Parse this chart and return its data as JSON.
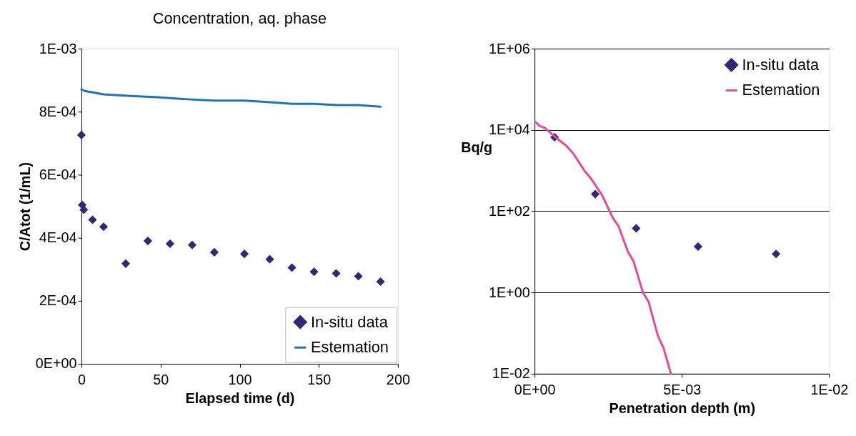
{
  "chart_data": [
    {
      "type": "scatter",
      "title": "Concentration, aq. phase",
      "xlabel": "Elapsed time (d)",
      "ylabel": "C/Atot (1/mL)",
      "xlim": [
        0,
        200
      ],
      "xticks": [
        0,
        50,
        100,
        150,
        200
      ],
      "ylim": [
        0,
        0.001
      ],
      "yticks": [
        {
          "value": 0,
          "label": "0E+00"
        },
        {
          "value": 0.0002,
          "label": "2E-04"
        },
        {
          "value": 0.0004,
          "label": "4E-04"
        },
        {
          "value": 0.0006,
          "label": "6E-04"
        },
        {
          "value": 0.0008,
          "label": "8E-04"
        },
        {
          "value": 0.001,
          "label": "1E-03"
        }
      ],
      "grid": false,
      "legend": "bottom right",
      "series": [
        {
          "name": "In-situ data",
          "type": "scatter",
          "marker": "diamond",
          "color": "#2e2878",
          "x": [
            0,
            0.5,
            1.5,
            7,
            14,
            28,
            42,
            56,
            70,
            84,
            103,
            119,
            133,
            147,
            161,
            175,
            189
          ],
          "values": [
            0.000726,
            0.000504,
            0.000489,
            0.000457,
            0.000435,
            0.000318,
            0.00039,
            0.000381,
            0.000377,
            0.000354,
            0.000349,
            0.000332,
            0.000305,
            0.000292,
            0.000287,
            0.000278,
            0.000261
          ]
        },
        {
          "name": "Estemation",
          "type": "line",
          "color": "#1f72bd",
          "x": [
            0,
            2,
            14,
            31,
            48,
            65,
            84,
            103,
            116,
            133,
            147,
            161,
            175,
            189
          ],
          "values": [
            0.00087,
            0.000866,
            0.000855,
            0.00085,
            0.000846,
            0.00084,
            0.000835,
            0.000835,
            0.000831,
            0.000825,
            0.000825,
            0.000821,
            0.000821,
            0.000816
          ]
        }
      ]
    },
    {
      "type": "scatter",
      "xlabel": "Penetration depth (m)",
      "ylabel": "Bq/g",
      "log": true,
      "xlim": [
        0,
        0.01
      ],
      "xticks": [
        {
          "value": 0,
          "label": "0E+00"
        },
        {
          "value": 0.005,
          "label": "5E-03"
        },
        {
          "value": 0.01,
          "label": "1E-02"
        }
      ],
      "ylim": [
        0.01,
        1000000
      ],
      "yticks": [
        {
          "value": 0.01,
          "label": "1E-02"
        },
        {
          "value": 1,
          "label": "1E+00"
        },
        {
          "value": 100,
          "label": "1E+02"
        },
        {
          "value": 10000,
          "label": "1E+04"
        },
        {
          "value": 1000000,
          "label": "1E+06"
        }
      ],
      "grid": "y",
      "legend": "top right",
      "series": [
        {
          "name": "In-situ data",
          "type": "scatter",
          "marker": "diamond",
          "color": "#2e2878",
          "x": [
            0.00068,
            0.00206,
            0.00345,
            0.00555,
            0.0082
          ],
          "values": [
            6600,
            263,
            38,
            13.5,
            8.9
          ]
        },
        {
          "name": "Estemation",
          "type": "line",
          "color": "#e8479a",
          "x": [
            3e-05,
            0.00017,
            0.00035,
            0.00063,
            0.00109,
            0.00132,
            0.00169,
            0.00192,
            0.00229,
            0.00266,
            0.00285,
            0.00317,
            0.00336,
            0.00368,
            0.00387,
            0.00419,
            0.00438,
            0.00463
          ],
          "values": [
            15800,
            12600,
            11200,
            7400,
            4000,
            2600,
            1000,
            630,
            250,
            68,
            43,
            10,
            5.9,
            1,
            0.59,
            0.085,
            0.043,
            0.01
          ]
        }
      ]
    }
  ]
}
